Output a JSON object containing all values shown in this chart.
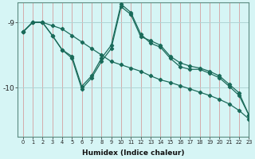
{
  "xlabel": "Humidex (Indice chaleur)",
  "bg_color": "#d6f5f5",
  "grid_color": "#aed4d4",
  "line_color": "#1a6b5a",
  "xlim": [
    -0.5,
    23
  ],
  "ylim": [
    -10.75,
    -8.7
  ],
  "yticks": [
    -10,
    -9
  ],
  "xticks": [
    0,
    1,
    2,
    3,
    4,
    5,
    6,
    7,
    8,
    9,
    10,
    11,
    12,
    13,
    14,
    15,
    16,
    17,
    18,
    19,
    20,
    21,
    22,
    23
  ],
  "line1_x": [
    0,
    1,
    2,
    3,
    4,
    5,
    6,
    7,
    8,
    9,
    10,
    11,
    12,
    13,
    14,
    15,
    16,
    17,
    18,
    19,
    20,
    21,
    22,
    23
  ],
  "line1_y": [
    -9.15,
    -9.0,
    -9.0,
    -9.05,
    -9.1,
    -9.2,
    -9.3,
    -9.4,
    -9.5,
    -9.6,
    -9.65,
    -9.7,
    -9.75,
    -9.82,
    -9.88,
    -9.92,
    -9.97,
    -10.02,
    -10.07,
    -10.12,
    -10.18,
    -10.25,
    -10.35,
    -10.48
  ],
  "line2_x": [
    0,
    1,
    2,
    3,
    4,
    5,
    6,
    7,
    8,
    9,
    10,
    11,
    12,
    13,
    14,
    15,
    16,
    17,
    18,
    19,
    20,
    21,
    22,
    23
  ],
  "line2_y": [
    -9.15,
    -9.0,
    -9.0,
    -9.2,
    -9.42,
    -9.52,
    -9.98,
    -9.82,
    -9.55,
    -9.35,
    -8.72,
    -8.85,
    -9.18,
    -9.32,
    -9.38,
    -9.55,
    -9.68,
    -9.72,
    -9.72,
    -9.78,
    -9.85,
    -9.98,
    -10.12,
    -10.42
  ],
  "line3_x": [
    0,
    1,
    2,
    3,
    4,
    5,
    6,
    7,
    8,
    9,
    10,
    11,
    12,
    13,
    14,
    15,
    16,
    17,
    18,
    19,
    20,
    21,
    22,
    23
  ],
  "line3_y": [
    -9.15,
    -9.0,
    -9.0,
    -9.2,
    -9.42,
    -9.55,
    -10.02,
    -9.85,
    -9.6,
    -9.4,
    -8.76,
    -8.88,
    -9.22,
    -9.28,
    -9.35,
    -9.52,
    -9.62,
    -9.67,
    -9.7,
    -9.75,
    -9.82,
    -9.95,
    -10.08,
    -10.42
  ]
}
